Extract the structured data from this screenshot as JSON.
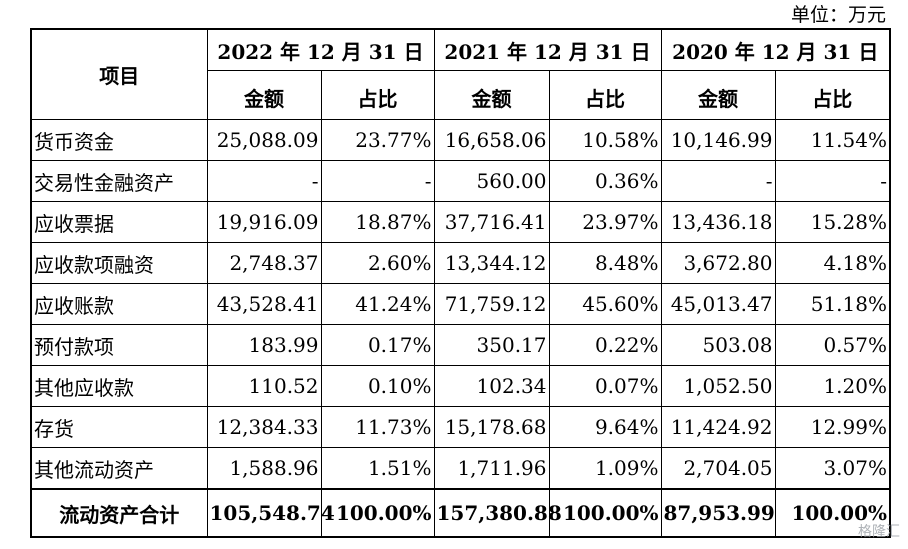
{
  "unit_label": "单位：万元",
  "header": {
    "item_label": "项目",
    "periods": [
      "2022 年 12 月 31 日",
      "2021 年 12 月 31 日",
      "2020 年 12 月 31 日"
    ],
    "amount_label": "金额",
    "ratio_label": "占比"
  },
  "rows": [
    {
      "label": "货币资金",
      "values": [
        "25,088.09",
        "23.77%",
        "16,658.06",
        "10.58%",
        "10,146.99",
        "11.54%"
      ]
    },
    {
      "label": "交易性金融资产",
      "values": [
        "-",
        "-",
        "560.00",
        "0.36%",
        "-",
        "-"
      ]
    },
    {
      "label": "应收票据",
      "values": [
        "19,916.09",
        "18.87%",
        "37,716.41",
        "23.97%",
        "13,436.18",
        "15.28%"
      ]
    },
    {
      "label": "应收款项融资",
      "values": [
        "2,748.37",
        "2.60%",
        "13,344.12",
        "8.48%",
        "3,672.80",
        "4.18%"
      ]
    },
    {
      "label": "应收账款",
      "values": [
        "43,528.41",
        "41.24%",
        "71,759.12",
        "45.60%",
        "45,013.47",
        "51.18%"
      ]
    },
    {
      "label": "预付款项",
      "values": [
        "183.99",
        "0.17%",
        "350.17",
        "0.22%",
        "503.08",
        "0.57%"
      ]
    },
    {
      "label": "其他应收款",
      "values": [
        "110.52",
        "0.10%",
        "102.34",
        "0.07%",
        "1,052.50",
        "1.20%"
      ]
    },
    {
      "label": "存货",
      "values": [
        "12,384.33",
        "11.73%",
        "15,178.68",
        "9.64%",
        "11,424.92",
        "12.99%"
      ]
    },
    {
      "label": "其他流动资产",
      "values": [
        "1,588.96",
        "1.51%",
        "1,711.96",
        "1.09%",
        "2,704.05",
        "3.07%"
      ]
    }
  ],
  "total": {
    "label": "流动资产合计",
    "values": [
      "105,548.74",
      "100.00%",
      "157,380.88",
      "100.00%",
      "87,953.99",
      "100.00%"
    ]
  },
  "watermark": "格隆汇"
}
